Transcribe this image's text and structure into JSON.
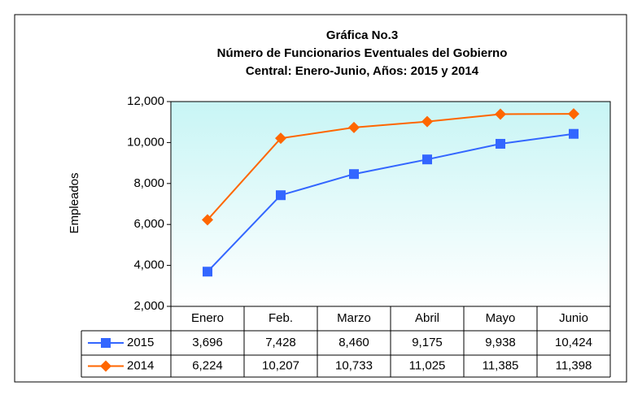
{
  "chart_data": {
    "type": "line",
    "title_lines": [
      "Gráfica No.3",
      "Número de Funcionarios Eventuales del Gobierno",
      "Central: Enero-Junio, Años: 2015 y 2014"
    ],
    "y_label": "Empleados",
    "categories": [
      "Enero",
      "Feb.",
      "Marzo",
      "Abril",
      "Mayo",
      "Junio"
    ],
    "series": [
      {
        "name": "2015",
        "color": "#3366ff",
        "marker": "square",
        "values": [
          3696,
          7428,
          8460,
          9175,
          9938,
          10424
        ],
        "value_labels": [
          "3,696",
          "7,428",
          "8,460",
          "9,175",
          "9,938",
          "10,424"
        ]
      },
      {
        "name": "2014",
        "color": "#ff6600",
        "marker": "diamond",
        "values": [
          6224,
          10207,
          10733,
          11025,
          11385,
          11398
        ],
        "value_labels": [
          "6,224",
          "10,207",
          "10,733",
          "11,025",
          "11,385",
          "11,398"
        ]
      }
    ],
    "ylim": [
      2000,
      12000
    ],
    "yticks": [
      {
        "value": 2000,
        "label": "2,000"
      },
      {
        "value": 4000,
        "label": "4,000"
      },
      {
        "value": 6000,
        "label": "6,000"
      },
      {
        "value": 8000,
        "label": "8,000"
      },
      {
        "value": 10000,
        "label": "10,000"
      },
      {
        "value": 12000,
        "label": "12,000"
      }
    ],
    "grid": false
  }
}
